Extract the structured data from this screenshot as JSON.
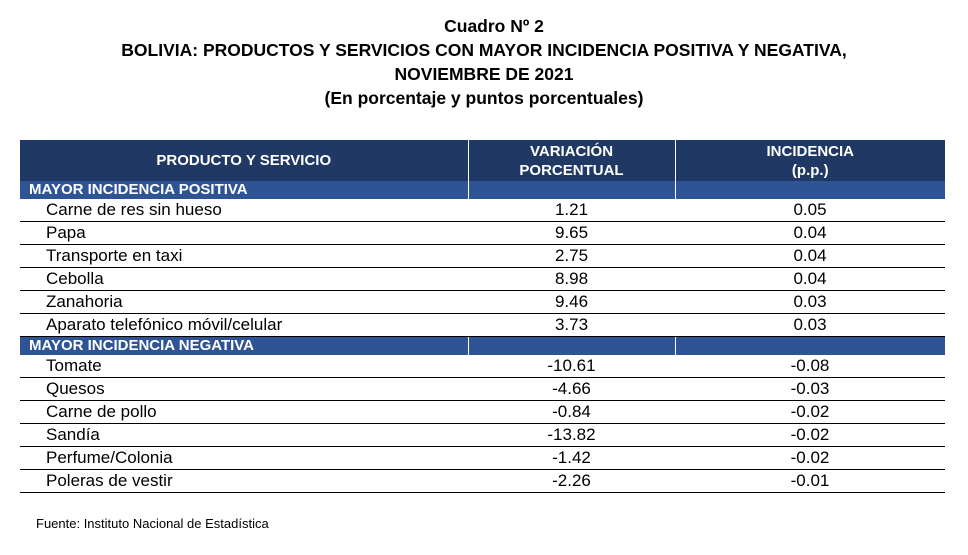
{
  "title": {
    "line1": "Cuadro Nº 2",
    "line2": "BOLIVIA: PRODUCTOS Y SERVICIOS CON MAYOR INCIDENCIA POSITIVA Y NEGATIVA,",
    "line3": "NOVIEMBRE DE 2021",
    "line4": "(En porcentaje y puntos porcentuales)"
  },
  "table": {
    "headers": {
      "product": "PRODUCTO Y SERVICIO",
      "variation_line1": "VARIACIÓN",
      "variation_line2": "PORCENTUAL",
      "incidence_line1": "INCIDENCIA",
      "incidence_line2": "(p.p.)"
    },
    "positive": {
      "label": "MAYOR INCIDENCIA POSITIVA",
      "rows": [
        {
          "product": "Carne de res sin hueso",
          "variation": "1.21",
          "incidence": "0.05"
        },
        {
          "product": "Papa",
          "variation": "9.65",
          "incidence": "0.04"
        },
        {
          "product": "Transporte en taxi",
          "variation": "2.75",
          "incidence": "0.04"
        },
        {
          "product": "Cebolla",
          "variation": "8.98",
          "incidence": "0.04"
        },
        {
          "product": "Zanahoria",
          "variation": "9.46",
          "incidence": "0.03"
        },
        {
          "product": "Aparato telefónico móvil/celular",
          "variation": "3.73",
          "incidence": "0.03"
        }
      ]
    },
    "negative": {
      "label": "MAYOR INCIDENCIA NEGATIVA",
      "rows": [
        {
          "product": "Tomate",
          "variation": "-10.61",
          "incidence": "-0.08"
        },
        {
          "product": "Quesos",
          "variation": "-4.66",
          "incidence": "-0.03"
        },
        {
          "product": "Carne de pollo",
          "variation": "-0.84",
          "incidence": "-0.02"
        },
        {
          "product": "Sandía",
          "variation": "-13.82",
          "incidence": "-0.02"
        },
        {
          "product": "Perfume/Colonia",
          "variation": "-1.42",
          "incidence": "-0.02"
        },
        {
          "product": "Poleras de vestir",
          "variation": "-2.26",
          "incidence": "-0.01"
        }
      ]
    }
  },
  "source": "Fuente: Instituto Nacional de Estadística",
  "colors": {
    "header_bg": "#1f3864",
    "section_bg": "#2f5496",
    "header_text": "#ffffff"
  }
}
